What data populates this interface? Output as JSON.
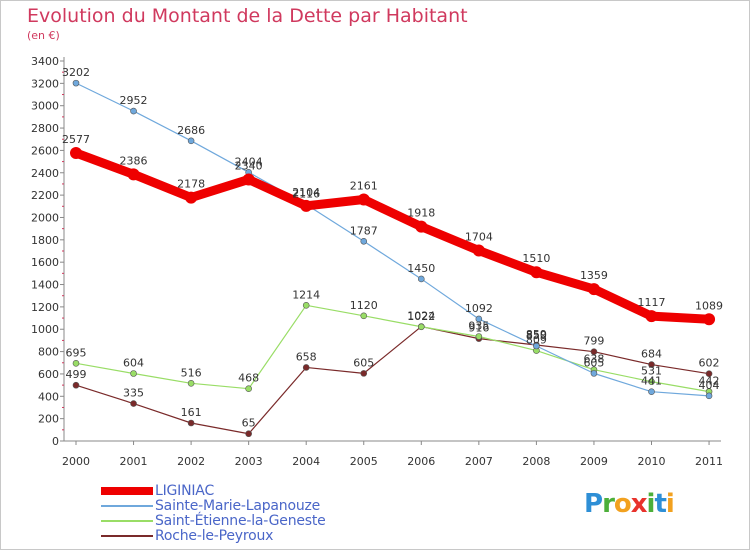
{
  "title": "Evolution du Montant de la Dette par Habitant",
  "unit_label": "(en €)",
  "logo_text": "Proxiti",
  "chart_data": {
    "type": "line",
    "x": [
      "2000",
      "2001",
      "2002",
      "2003",
      "2004",
      "2005",
      "2006",
      "2007",
      "2008",
      "2009",
      "2010",
      "2011"
    ],
    "ylim": [
      0,
      3400
    ],
    "yticks": [
      0,
      200,
      400,
      600,
      800,
      1000,
      1200,
      1400,
      1600,
      1800,
      2000,
      2200,
      2400,
      2600,
      2800,
      3000,
      3200,
      3400
    ],
    "grid": false,
    "legend_position": "bottom-left",
    "series": [
      {
        "name": "LIGINIAC",
        "color": "#ee0000",
        "values": [
          2577,
          2386,
          2178,
          2340,
          2104,
          2161,
          1918,
          1704,
          1510,
          1359,
          1117,
          1089
        ]
      },
      {
        "name": "Sainte-Marie-Lapanouze",
        "color": "#6fa8dc",
        "values": [
          3202,
          2952,
          2686,
          2404,
          2116,
          1787,
          1450,
          1092,
          850,
          605,
          441,
          404
        ]
      },
      {
        "name": "Saint-Étienne-la-Geneste",
        "color": "#99dd66",
        "values": [
          695,
          604,
          516,
          468,
          1214,
          1120,
          1022,
          935,
          809,
          638,
          531,
          442
        ]
      },
      {
        "name": "Roche-le-Peyroux",
        "color": "#7a2a2a",
        "values": [
          499,
          335,
          161,
          65,
          658,
          605,
          1024,
          916,
          859,
          799,
          684,
          602
        ]
      }
    ]
  }
}
